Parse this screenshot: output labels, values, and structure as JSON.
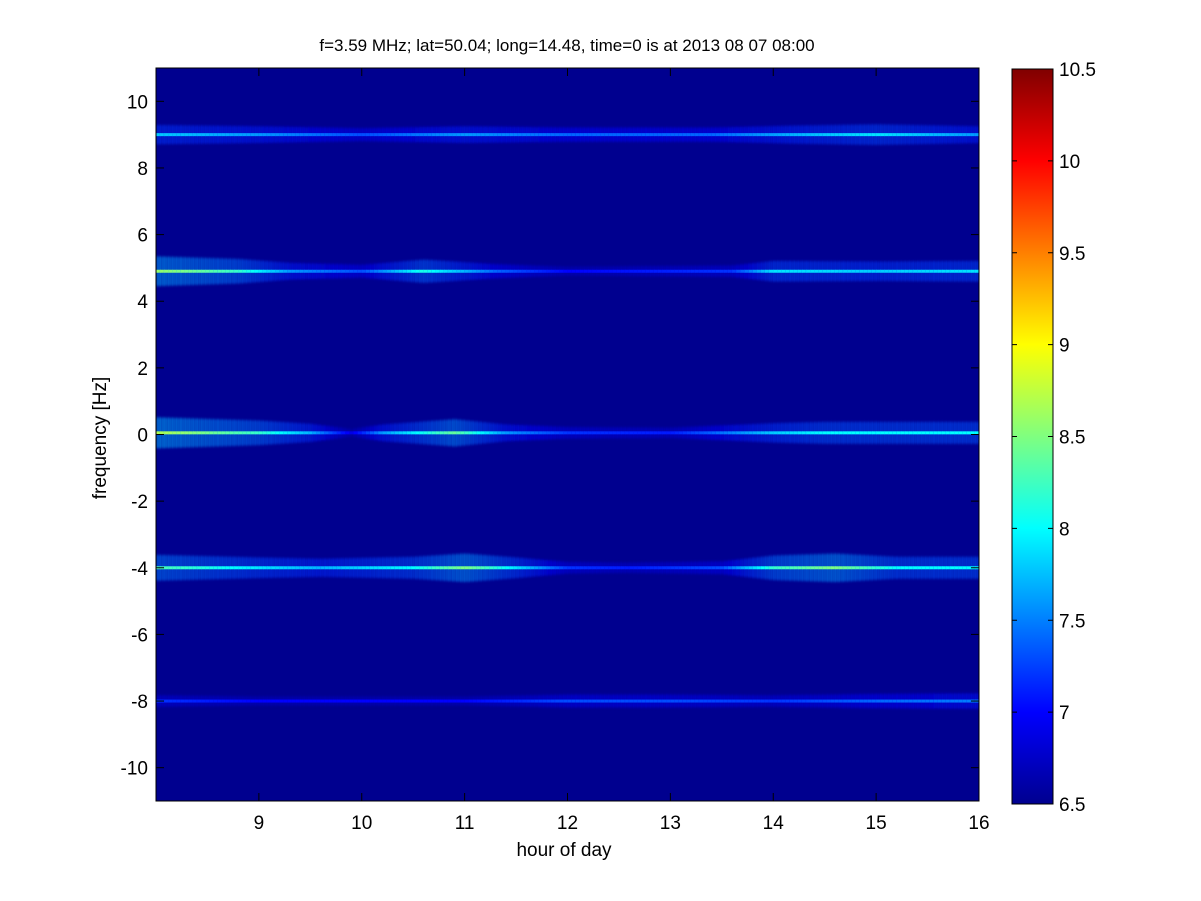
{
  "chart_data": {
    "type": "heatmap",
    "title": "f=3.59 MHz;  lat=50.04; long=14.48, time=0 is at 2013 08 07 08:00",
    "xlabel": "hour of day",
    "ylabel": "frequency [Hz]",
    "xlim": [
      8,
      16
    ],
    "ylim": [
      -11,
      11
    ],
    "xticks": [
      "9",
      "10",
      "11",
      "12",
      "13",
      "14",
      "15",
      "16"
    ],
    "yticks": [
      "-10",
      "-8",
      "-6",
      "-4",
      "-2",
      "0",
      "2",
      "4",
      "6",
      "8",
      "10"
    ],
    "colorbar": {
      "colormap": "jet",
      "range": [
        6.5,
        10.5
      ],
      "ticks": [
        "6.5",
        "7",
        "7.5",
        "8",
        "8.5",
        "9",
        "9.5",
        "10",
        "10.5"
      ]
    },
    "background_color": "#00008f",
    "grid": false,
    "ridges": [
      {
        "frequency": 9.0,
        "intensity": [
          [
            8.0,
            7.8
          ],
          [
            9.0,
            7.6
          ],
          [
            10.0,
            7.3
          ],
          [
            11.0,
            7.6
          ],
          [
            12.0,
            7.4
          ],
          [
            13.4,
            7.4
          ],
          [
            14.2,
            7.7
          ],
          [
            15.0,
            7.9
          ],
          [
            16.0,
            7.6
          ]
        ]
      },
      {
        "frequency": 4.9,
        "intensity": [
          [
            8.0,
            8.6
          ],
          [
            8.8,
            8.2
          ],
          [
            9.3,
            7.6
          ],
          [
            10.0,
            7.3
          ],
          [
            10.6,
            8.1
          ],
          [
            11.3,
            7.4
          ],
          [
            12.0,
            7.0
          ],
          [
            13.6,
            7.2
          ],
          [
            14.0,
            7.9
          ],
          [
            15.0,
            7.8
          ],
          [
            16.0,
            7.9
          ]
        ]
      },
      {
        "frequency": 0.05,
        "intensity": [
          [
            8.0,
            8.7
          ],
          [
            9.0,
            8.2
          ],
          [
            9.5,
            7.7
          ],
          [
            9.9,
            6.9
          ],
          [
            10.2,
            7.6
          ],
          [
            10.9,
            8.4
          ],
          [
            11.4,
            7.6
          ],
          [
            12.0,
            7.2
          ],
          [
            13.0,
            7.1
          ],
          [
            14.0,
            7.8
          ],
          [
            14.5,
            8.0
          ],
          [
            15.0,
            8.0
          ],
          [
            16.0,
            8.0
          ]
        ]
      },
      {
        "frequency": -4.0,
        "intensity": [
          [
            8.0,
            8.3
          ],
          [
            9.0,
            7.9
          ],
          [
            9.6,
            7.7
          ],
          [
            10.5,
            8.0
          ],
          [
            11.0,
            8.5
          ],
          [
            11.5,
            7.9
          ],
          [
            12.0,
            7.2
          ],
          [
            12.6,
            7.1
          ],
          [
            13.5,
            7.3
          ],
          [
            14.0,
            8.2
          ],
          [
            14.6,
            8.5
          ],
          [
            15.2,
            8.0
          ],
          [
            16.0,
            8.0
          ]
        ]
      },
      {
        "frequency": -8.0,
        "intensity": [
          [
            8.0,
            7.2
          ],
          [
            9.0,
            7.0
          ],
          [
            10.0,
            7.0
          ],
          [
            11.0,
            7.0
          ],
          [
            12.0,
            7.3
          ],
          [
            13.0,
            7.3
          ],
          [
            14.0,
            7.2
          ],
          [
            15.0,
            7.4
          ],
          [
            16.0,
            7.5
          ]
        ]
      }
    ]
  }
}
